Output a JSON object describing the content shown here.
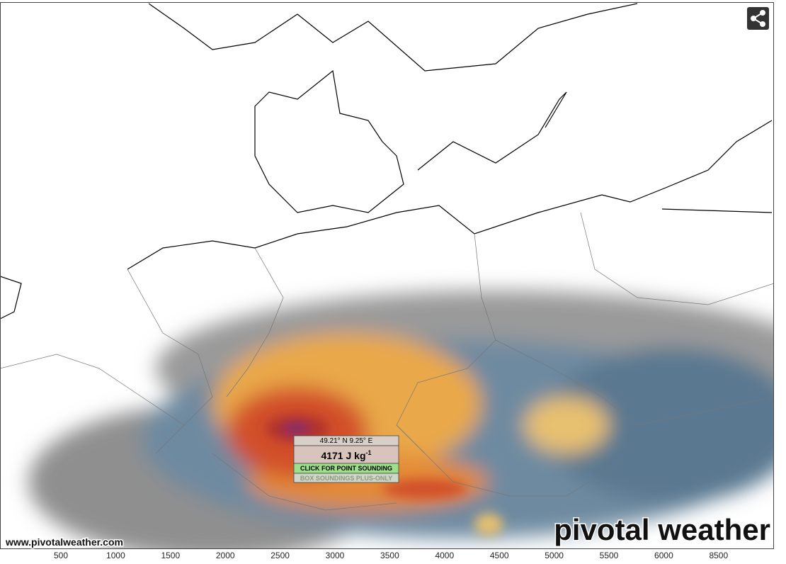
{
  "popup": {
    "coordinates": "49.21° N 9.25° E",
    "value": 4171,
    "unit": "J kg",
    "unit_exponent": "-1",
    "action": "CLICK FOR POINT SOUNDING",
    "note": "BOX SOUNDINGS PLUS-ONLY"
  },
  "watermark": "www.pivotalweather.com",
  "logo": "pivotal weather",
  "colorbar": {
    "labels": [
      500,
      1000,
      1500,
      2000,
      2500,
      3000,
      3500,
      4000,
      4500,
      5000,
      5500,
      6000,
      8500
    ]
  }
}
